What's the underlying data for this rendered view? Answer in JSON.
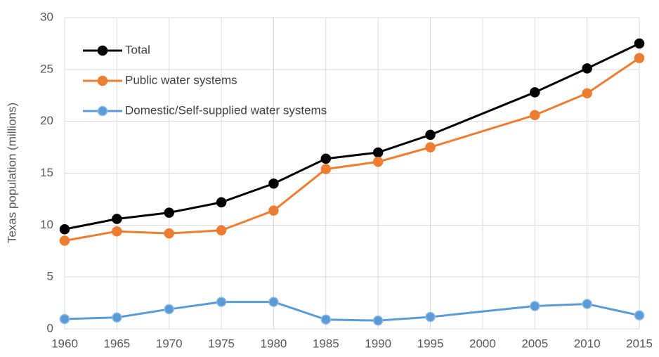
{
  "chart_data": {
    "type": "line",
    "y_label": "Texas population (millions)",
    "x": [
      1960,
      1965,
      1970,
      1975,
      1980,
      1985,
      1990,
      1995,
      2005,
      2010,
      2015
    ],
    "series": [
      {
        "name": "Total",
        "color": "#000000",
        "values": [
          9.6,
          10.6,
          11.2,
          12.2,
          14.0,
          16.4,
          17.0,
          18.7,
          22.8,
          25.1,
          27.5
        ]
      },
      {
        "name": "Public water systems",
        "color": "#ed7d31",
        "values": [
          8.5,
          9.4,
          9.2,
          9.5,
          11.4,
          15.4,
          16.1,
          17.5,
          20.6,
          22.7,
          26.1
        ]
      },
      {
        "name": "Domestic/Self-supplied water systems",
        "color": "#5b9bd5",
        "values": [
          0.95,
          1.1,
          1.9,
          2.6,
          2.6,
          0.9,
          0.8,
          1.15,
          2.2,
          2.4,
          1.3
        ]
      }
    ],
    "xlim": [
      1960,
      2015
    ],
    "xticks": [
      1960,
      1965,
      1970,
      1975,
      1980,
      1985,
      1990,
      1995,
      2000,
      2005,
      2010,
      2015
    ],
    "ylim": [
      0,
      30
    ],
    "yticks": [
      0,
      5,
      10,
      15,
      20,
      25,
      30
    ],
    "grid": true,
    "legend": "upper-left"
  }
}
